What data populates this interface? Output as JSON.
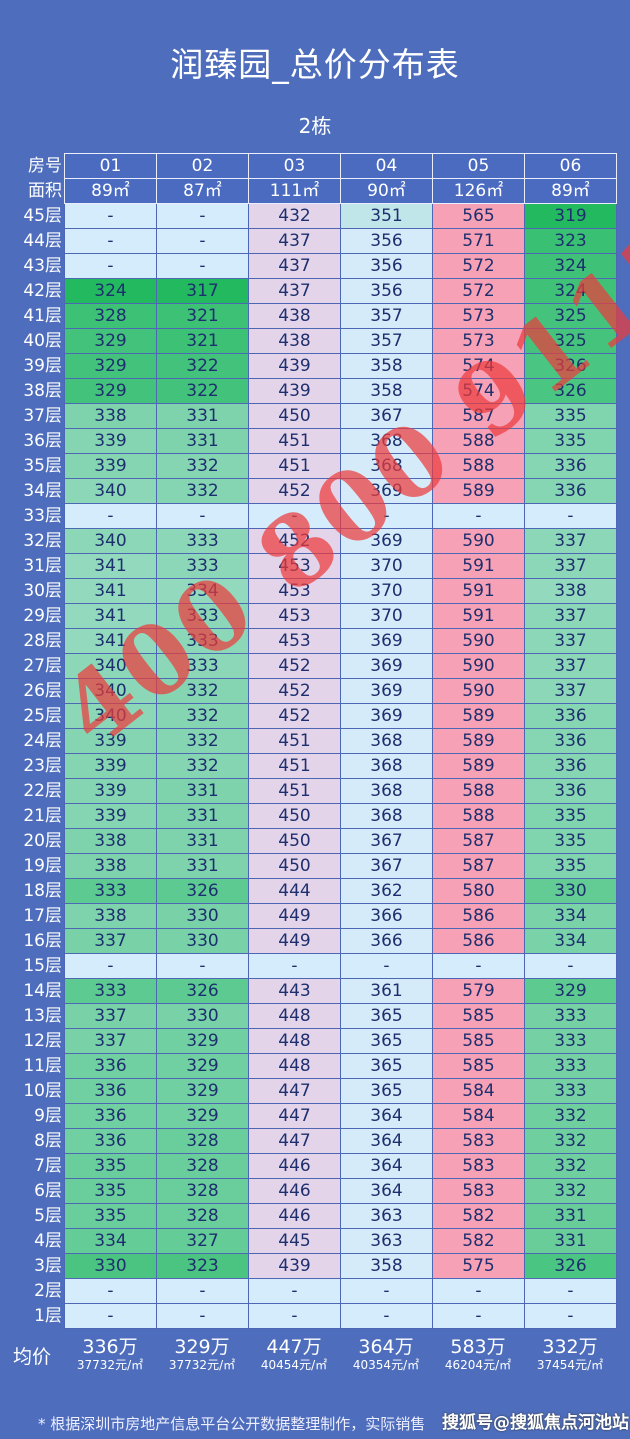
{
  "title": "润臻园_总价分布表",
  "subtitle": "2栋",
  "header": {
    "room_label": "房号",
    "area_label": "面积",
    "rooms": [
      "01",
      "02",
      "03",
      "04",
      "05",
      "06"
    ],
    "areas": [
      "89㎡",
      "87㎡",
      "111㎡",
      "90㎡",
      "126㎡",
      "89㎡"
    ]
  },
  "colors": {
    "background": "#4e6ebd",
    "green_dark": "#22b95f",
    "green_light": "#92d9bd",
    "lavender": "#e4d4ea",
    "light_blue": "#d5ebf9",
    "teal": "#c0e6ea",
    "pink": "#f7a1b6",
    "empty": "#d4ecfb"
  },
  "rows": [
    {
      "floor": "45层",
      "values": [
        "-",
        "-",
        "432",
        "351",
        "565",
        "319"
      ]
    },
    {
      "floor": "44层",
      "values": [
        "-",
        "-",
        "437",
        "356",
        "571",
        "323"
      ]
    },
    {
      "floor": "43层",
      "values": [
        "-",
        "-",
        "437",
        "356",
        "572",
        "324"
      ]
    },
    {
      "floor": "42层",
      "values": [
        "324",
        "317",
        "437",
        "356",
        "572",
        "324"
      ]
    },
    {
      "floor": "41层",
      "values": [
        "328",
        "321",
        "438",
        "357",
        "573",
        "325"
      ]
    },
    {
      "floor": "40层",
      "values": [
        "329",
        "321",
        "438",
        "357",
        "573",
        "325"
      ]
    },
    {
      "floor": "39层",
      "values": [
        "329",
        "322",
        "439",
        "358",
        "574",
        "326"
      ]
    },
    {
      "floor": "38层",
      "values": [
        "329",
        "322",
        "439",
        "358",
        "574",
        "326"
      ]
    },
    {
      "floor": "37层",
      "values": [
        "338",
        "331",
        "450",
        "367",
        "587",
        "335"
      ]
    },
    {
      "floor": "36层",
      "values": [
        "339",
        "331",
        "451",
        "368",
        "588",
        "335"
      ]
    },
    {
      "floor": "35层",
      "values": [
        "339",
        "332",
        "451",
        "368",
        "588",
        "336"
      ]
    },
    {
      "floor": "34层",
      "values": [
        "340",
        "332",
        "452",
        "369",
        "589",
        "336"
      ]
    },
    {
      "floor": "33层",
      "values": [
        "-",
        "-",
        "-",
        "-",
        "-",
        "-"
      ]
    },
    {
      "floor": "32层",
      "values": [
        "340",
        "333",
        "452",
        "369",
        "590",
        "337"
      ]
    },
    {
      "floor": "31层",
      "values": [
        "341",
        "333",
        "453",
        "370",
        "591",
        "337"
      ]
    },
    {
      "floor": "30层",
      "values": [
        "341",
        "334",
        "453",
        "370",
        "591",
        "338"
      ]
    },
    {
      "floor": "29层",
      "values": [
        "341",
        "333",
        "453",
        "370",
        "591",
        "337"
      ]
    },
    {
      "floor": "28层",
      "values": [
        "341",
        "333",
        "453",
        "369",
        "590",
        "337"
      ]
    },
    {
      "floor": "27层",
      "values": [
        "340",
        "333",
        "452",
        "369",
        "590",
        "337"
      ]
    },
    {
      "floor": "26层",
      "values": [
        "340",
        "332",
        "452",
        "369",
        "590",
        "337"
      ]
    },
    {
      "floor": "25层",
      "values": [
        "340",
        "332",
        "452",
        "369",
        "589",
        "336"
      ]
    },
    {
      "floor": "24层",
      "values": [
        "339",
        "332",
        "451",
        "368",
        "589",
        "336"
      ]
    },
    {
      "floor": "23层",
      "values": [
        "339",
        "332",
        "451",
        "368",
        "589",
        "336"
      ]
    },
    {
      "floor": "22层",
      "values": [
        "339",
        "331",
        "451",
        "368",
        "588",
        "336"
      ]
    },
    {
      "floor": "21层",
      "values": [
        "339",
        "331",
        "450",
        "368",
        "588",
        "335"
      ]
    },
    {
      "floor": "20层",
      "values": [
        "338",
        "331",
        "450",
        "367",
        "587",
        "335"
      ]
    },
    {
      "floor": "19层",
      "values": [
        "338",
        "331",
        "450",
        "367",
        "587",
        "335"
      ]
    },
    {
      "floor": "18层",
      "values": [
        "333",
        "326",
        "444",
        "362",
        "580",
        "330"
      ]
    },
    {
      "floor": "17层",
      "values": [
        "338",
        "330",
        "449",
        "366",
        "586",
        "334"
      ]
    },
    {
      "floor": "16层",
      "values": [
        "337",
        "330",
        "449",
        "366",
        "586",
        "334"
      ]
    },
    {
      "floor": "15层",
      "values": [
        "-",
        "-",
        "-",
        "-",
        "-",
        "-"
      ]
    },
    {
      "floor": "14层",
      "values": [
        "333",
        "326",
        "443",
        "361",
        "579",
        "329"
      ]
    },
    {
      "floor": "13层",
      "values": [
        "337",
        "330",
        "448",
        "365",
        "585",
        "333"
      ]
    },
    {
      "floor": "12层",
      "values": [
        "337",
        "329",
        "448",
        "365",
        "585",
        "333"
      ]
    },
    {
      "floor": "11层",
      "values": [
        "336",
        "329",
        "448",
        "365",
        "585",
        "333"
      ]
    },
    {
      "floor": "10层",
      "values": [
        "336",
        "329",
        "447",
        "365",
        "584",
        "333"
      ]
    },
    {
      "floor": "9层",
      "values": [
        "336",
        "329",
        "447",
        "364",
        "584",
        "332"
      ]
    },
    {
      "floor": "8层",
      "values": [
        "336",
        "328",
        "447",
        "364",
        "583",
        "332"
      ]
    },
    {
      "floor": "7层",
      "values": [
        "335",
        "328",
        "446",
        "364",
        "583",
        "332"
      ]
    },
    {
      "floor": "6层",
      "values": [
        "335",
        "328",
        "446",
        "364",
        "583",
        "332"
      ]
    },
    {
      "floor": "5层",
      "values": [
        "335",
        "328",
        "446",
        "363",
        "582",
        "331"
      ]
    },
    {
      "floor": "4层",
      "values": [
        "334",
        "327",
        "445",
        "363",
        "582",
        "331"
      ]
    },
    {
      "floor": "3层",
      "values": [
        "330",
        "323",
        "439",
        "358",
        "575",
        "326"
      ]
    },
    {
      "floor": "2层",
      "values": [
        "-",
        "-",
        "-",
        "-",
        "-",
        "-"
      ]
    },
    {
      "floor": "1层",
      "values": [
        "-",
        "-",
        "-",
        "-",
        "-",
        "-"
      ]
    }
  ],
  "average": {
    "label": "均价",
    "totals": [
      "336万",
      "329万",
      "447万",
      "364万",
      "583万",
      "332万"
    ],
    "unit_prices": [
      "37732元/㎡",
      "37732元/㎡",
      "40454元/㎡",
      "40354元/㎡",
      "46204元/㎡",
      "37454元/㎡"
    ]
  },
  "footnote": "* 根据深圳市房地产信息平台公开数据整理制作，实际销售",
  "watermark_source": "搜狐号@搜狐焦点河池站",
  "watermark_phone": "400 800 9113"
}
